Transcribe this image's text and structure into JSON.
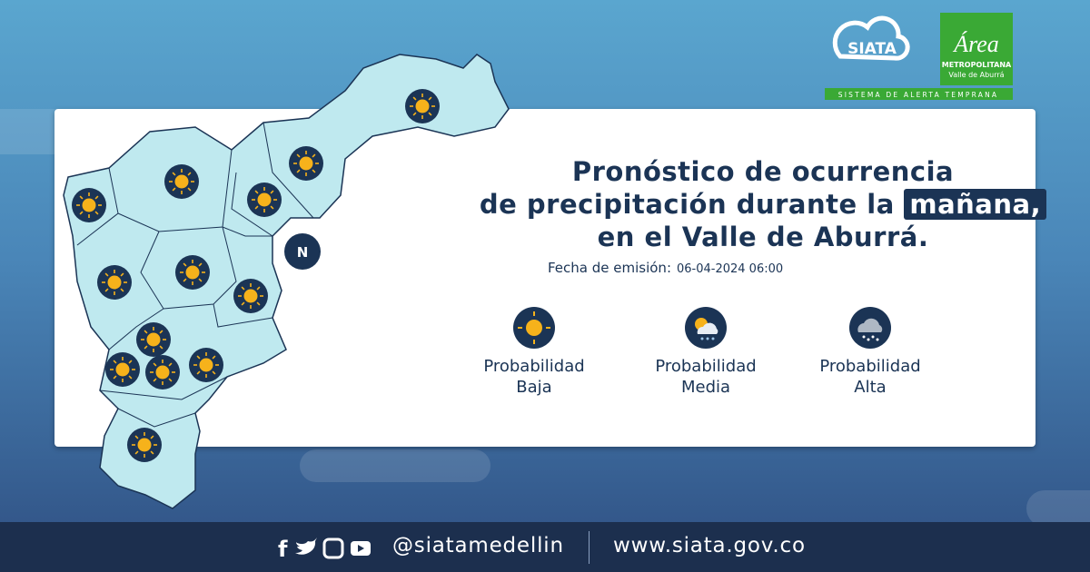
{
  "logo": {
    "siata": "SIATA",
    "area": "Área",
    "metropolitana": "METROPOLITANA",
    "valle": "Valle de Aburrá",
    "tagline": "SISTEMA DE ALERTA TEMPRANA"
  },
  "title": {
    "line1": "Pronóstico de ocurrencia",
    "line2": "de precipitación durante la",
    "highlight": "mañana,",
    "line3": "en el Valle de Aburrá."
  },
  "compass": "N",
  "issued": {
    "label": "Fecha de emisión:",
    "date": "06-04-2024 06:00"
  },
  "legend": [
    {
      "line1": "Probabilidad",
      "line2": "Baja"
    },
    {
      "line1": "Probabilidad",
      "line2": "Media"
    },
    {
      "line1": "Probabilidad",
      "line2": "Alta"
    }
  ],
  "footer": {
    "handle": "@siatamedellin",
    "url": "www.siata.gov.co"
  }
}
